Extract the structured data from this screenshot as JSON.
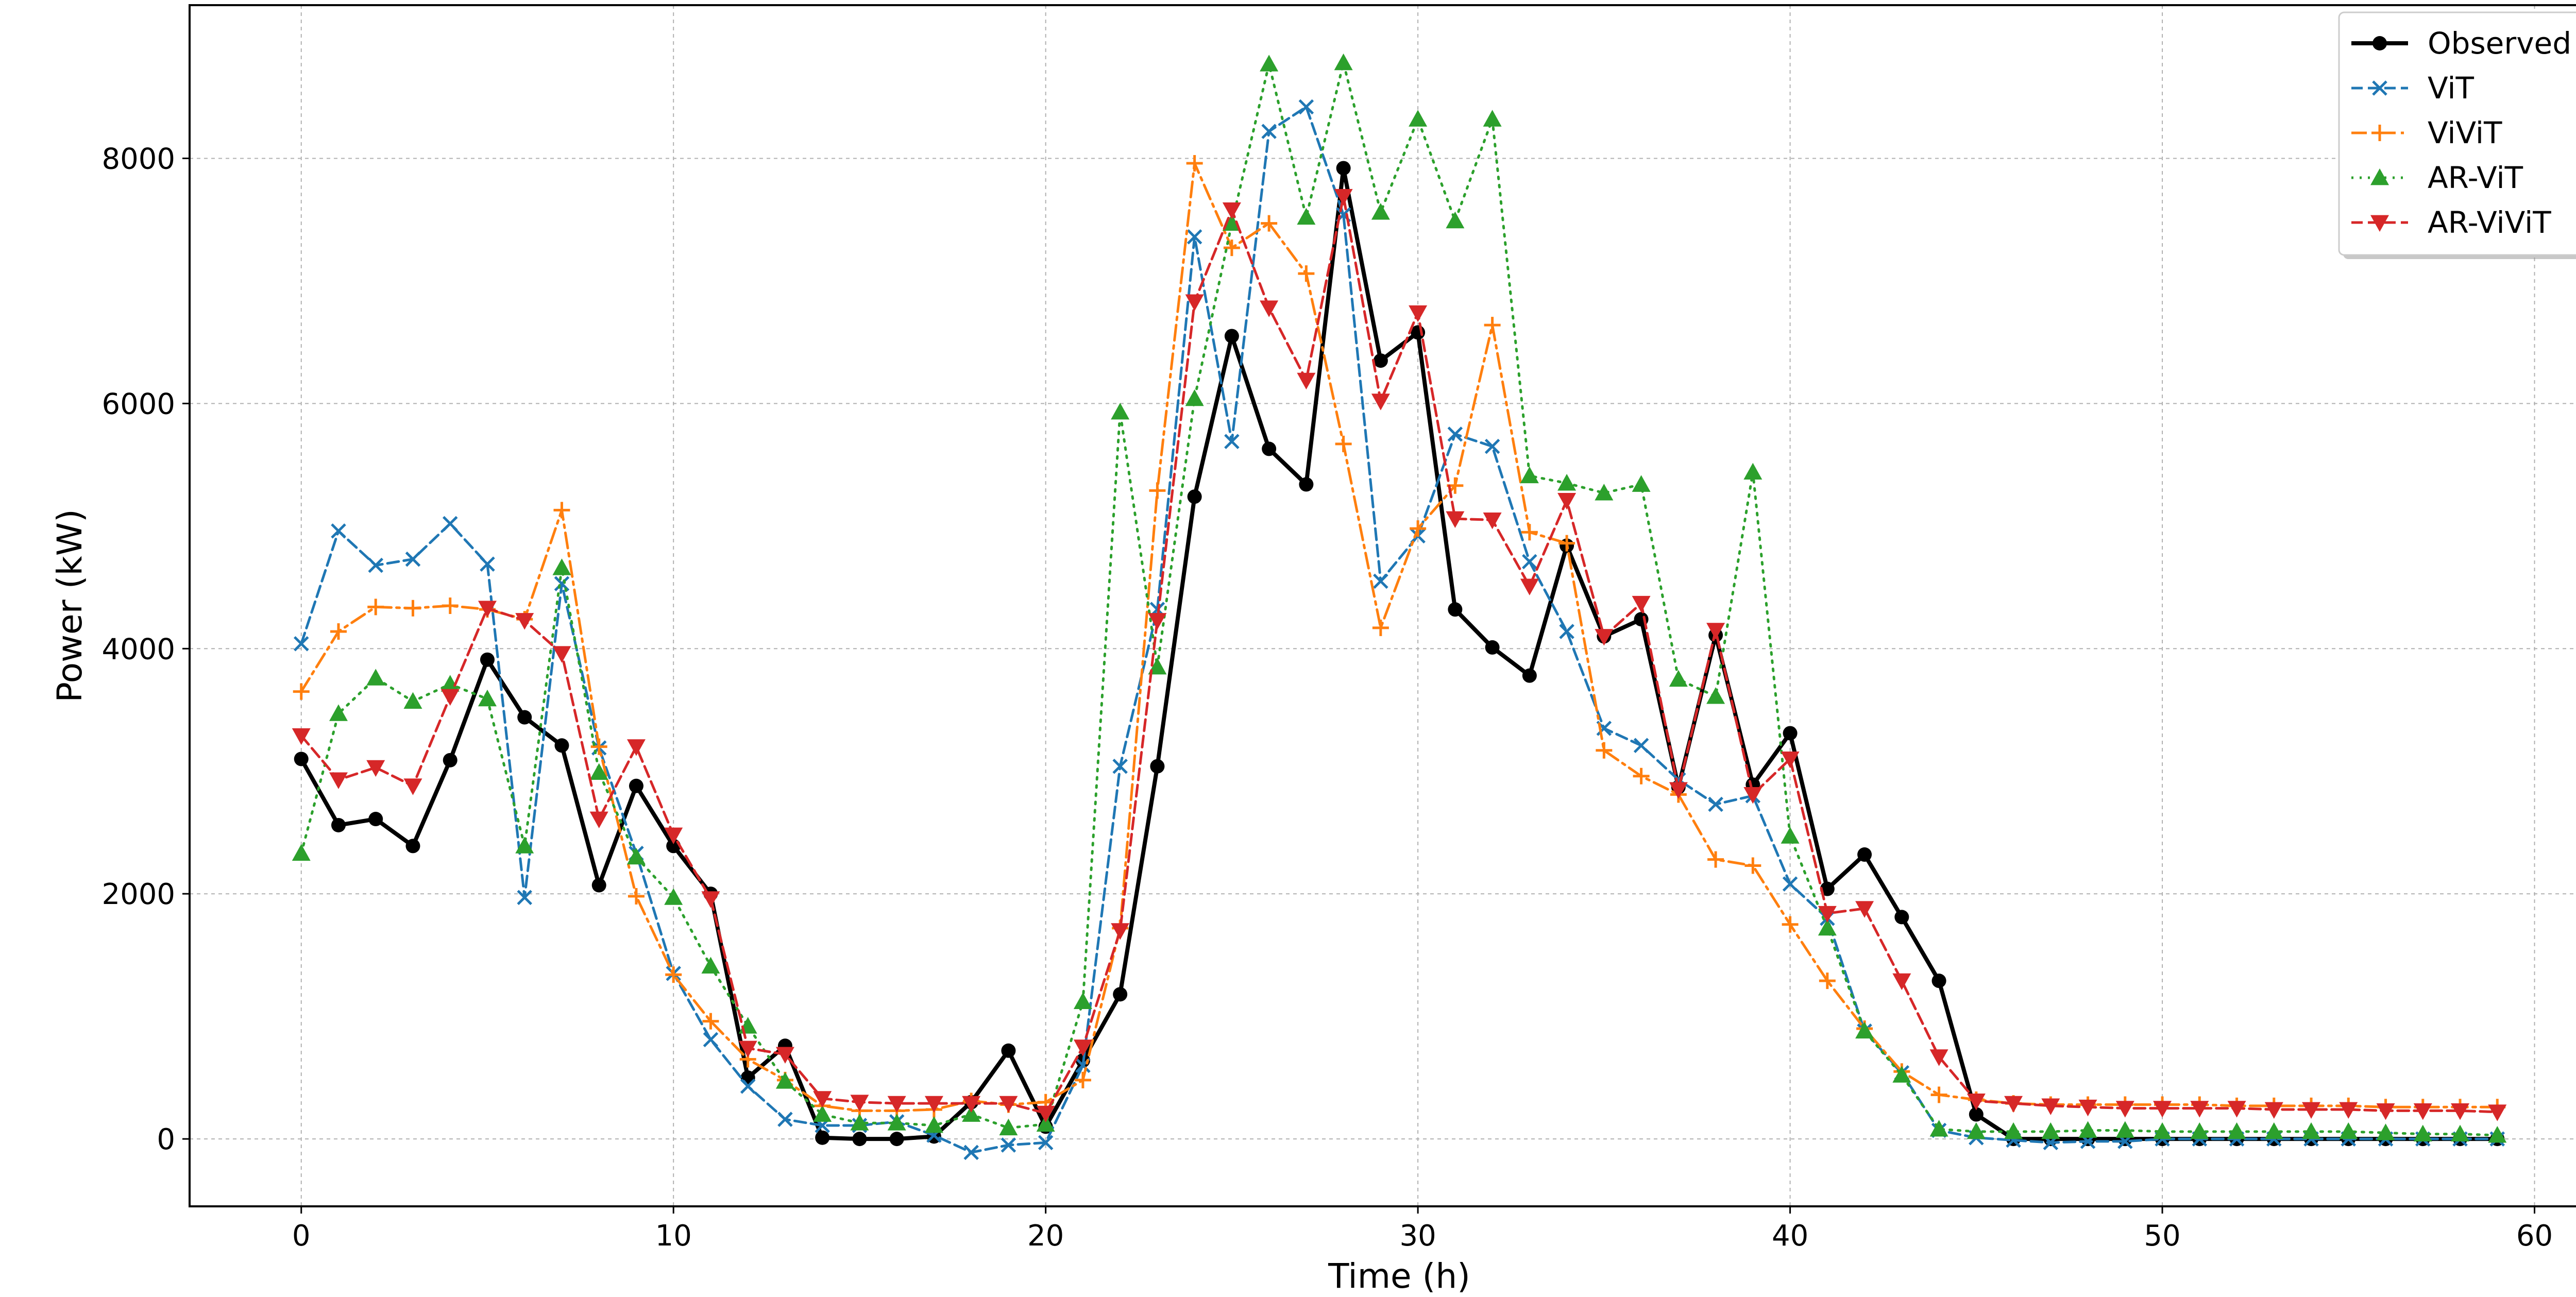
{
  "chart_data": {
    "type": "line",
    "xlabel": "Time (h)",
    "ylabel": "Power (kW)",
    "xlim": [
      -3,
      62
    ],
    "ylim": [
      -550,
      9250
    ],
    "xticks": [
      0,
      10,
      20,
      30,
      40,
      50,
      60
    ],
    "yticks": [
      0,
      2000,
      4000,
      6000,
      8000
    ],
    "grid": true,
    "legend_position": "top-right",
    "x": [
      0,
      1,
      2,
      3,
      4,
      5,
      6,
      7,
      8,
      9,
      10,
      11,
      12,
      13,
      14,
      15,
      16,
      17,
      18,
      19,
      20,
      21,
      22,
      23,
      24,
      25,
      26,
      27,
      28,
      29,
      30,
      31,
      32,
      33,
      34,
      35,
      36,
      37,
      38,
      39,
      40,
      41,
      42,
      43,
      44,
      45,
      46,
      47,
      48,
      49,
      50,
      51,
      52,
      53,
      54,
      55,
      56,
      57,
      58,
      59
    ],
    "series": [
      {
        "name": "Observed",
        "color": "#000000",
        "marker": "circle",
        "dash": "",
        "width": 8,
        "values": [
          3100,
          2560,
          2610,
          2390,
          3090,
          3910,
          3440,
          3210,
          2070,
          2880,
          2390,
          2000,
          500,
          760,
          10,
          0,
          0,
          20,
          300,
          720,
          100,
          640,
          1180,
          3040,
          5240,
          6550,
          5630,
          5340,
          7920,
          6350,
          6580,
          4320,
          4010,
          3780,
          4840,
          4100,
          4240,
          2870,
          4110,
          2890,
          3310,
          2040,
          2320,
          1810,
          1290,
          200,
          0,
          0,
          0,
          0,
          0,
          0,
          0,
          0,
          0,
          0,
          0,
          0,
          0,
          0
        ]
      },
      {
        "name": "ViT",
        "color": "#1f77b4",
        "marker": "x",
        "dash": "22,10",
        "width": 5,
        "values": [
          4040,
          4960,
          4680,
          4730,
          5020,
          4690,
          1970,
          4530,
          3190,
          2330,
          1350,
          810,
          430,
          160,
          110,
          110,
          140,
          30,
          -110,
          -50,
          -30,
          600,
          3040,
          4320,
          7360,
          5690,
          8220,
          8420,
          7540,
          4550,
          4920,
          5750,
          5650,
          4710,
          4140,
          3350,
          3210,
          2930,
          2730,
          2800,
          2080,
          1800,
          880,
          540,
          70,
          10,
          -10,
          -30,
          -20,
          -20,
          0,
          0,
          0,
          0,
          0,
          0,
          0,
          0,
          0,
          0
        ]
      },
      {
        "name": "ViViT",
        "color": "#ff7f0e",
        "marker": "plus",
        "dash": "30,10,6,10",
        "width": 5,
        "values": [
          3650,
          4140,
          4340,
          4330,
          4350,
          4320,
          4240,
          5130,
          3200,
          1980,
          1340,
          960,
          650,
          480,
          270,
          230,
          230,
          240,
          310,
          280,
          300,
          480,
          1720,
          5290,
          7960,
          7270,
          7470,
          7060,
          5670,
          4170,
          4980,
          5330,
          6640,
          4950,
          4860,
          3170,
          2960,
          2810,
          2280,
          2230,
          1750,
          1290,
          900,
          550,
          360,
          320,
          290,
          280,
          280,
          280,
          280,
          280,
          270,
          270,
          270,
          270,
          260,
          260,
          260,
          260
        ]
      },
      {
        "name": "AR-ViT",
        "color": "#2ca02c",
        "marker": "triangle-up",
        "dash": "4,12",
        "width": 5,
        "values": [
          2330,
          3470,
          3760,
          3570,
          3710,
          3590,
          2390,
          4660,
          2990,
          2300,
          1970,
          1410,
          920,
          470,
          200,
          130,
          130,
          110,
          200,
          90,
          120,
          1120,
          5930,
          3850,
          6040,
          7470,
          8770,
          7520,
          8780,
          7560,
          8320,
          7490,
          8320,
          5410,
          5350,
          5270,
          5340,
          3750,
          3610,
          5440,
          2470,
          1720,
          880,
          520,
          80,
          60,
          60,
          60,
          70,
          70,
          60,
          60,
          60,
          60,
          60,
          60,
          50,
          40,
          40,
          30
        ]
      },
      {
        "name": "AR-ViViT",
        "color": "#d62728",
        "marker": "triangle-down",
        "dash": "22,10",
        "width": 5,
        "values": [
          3290,
          2930,
          3030,
          2880,
          3610,
          4330,
          4230,
          3960,
          2610,
          3200,
          2480,
          1960,
          740,
          690,
          330,
          300,
          290,
          290,
          290,
          290,
          210,
          750,
          1700,
          4230,
          6830,
          7580,
          6780,
          6190,
          7690,
          6020,
          6740,
          5060,
          5050,
          4510,
          5210,
          4100,
          4370,
          2850,
          4150,
          2810,
          3100,
          1840,
          1880,
          1290,
          670,
          310,
          290,
          270,
          260,
          250,
          250,
          250,
          250,
          240,
          240,
          240,
          230,
          230,
          230,
          220
        ]
      }
    ]
  }
}
